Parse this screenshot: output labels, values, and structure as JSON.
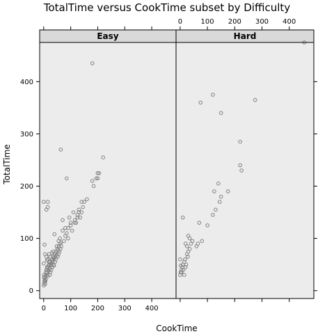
{
  "chart_data": {
    "type": "scatter",
    "title": "TotalTime versus CookTime subset by Difficulty",
    "xlabel": "CookTime",
    "ylabel": "TotalTime",
    "xlim": [
      -15,
      490
    ],
    "ylim": [
      -15,
      475
    ],
    "x_ticks": [
      0,
      100,
      200,
      300,
      400
    ],
    "y_ticks": [
      0,
      100,
      200,
      300,
      400
    ],
    "grid": false,
    "colors": {
      "panel_bg": "#ececec",
      "strip_bg": "#d9d9d9",
      "point_stroke": "#808080"
    },
    "panels": [
      {
        "name": "Easy",
        "points": [
          [
            0,
            10
          ],
          [
            2,
            15
          ],
          [
            3,
            20
          ],
          [
            4,
            25
          ],
          [
            5,
            12
          ],
          [
            6,
            18
          ],
          [
            8,
            22
          ],
          [
            10,
            30
          ],
          [
            12,
            35
          ],
          [
            14,
            40
          ],
          [
            15,
            28
          ],
          [
            16,
            45
          ],
          [
            18,
            38
          ],
          [
            20,
            50
          ],
          [
            22,
            42
          ],
          [
            24,
            55
          ],
          [
            25,
            35
          ],
          [
            26,
            48
          ],
          [
            28,
            52
          ],
          [
            30,
            60
          ],
          [
            32,
            45
          ],
          [
            34,
            58
          ],
          [
            35,
            65
          ],
          [
            36,
            50
          ],
          [
            38,
            62
          ],
          [
            40,
            70
          ],
          [
            42,
            55
          ],
          [
            44,
            72
          ],
          [
            45,
            60
          ],
          [
            46,
            75
          ],
          [
            48,
            68
          ],
          [
            50,
            80
          ],
          [
            52,
            65
          ],
          [
            54,
            78
          ],
          [
            55,
            70
          ],
          [
            56,
            85
          ],
          [
            58,
            75
          ],
          [
            60,
            90
          ],
          [
            62,
            80
          ],
          [
            64,
            92
          ],
          [
            65,
            85
          ],
          [
            10,
            40
          ],
          [
            12,
            45
          ],
          [
            20,
            55
          ],
          [
            25,
            65
          ],
          [
            30,
            72
          ],
          [
            35,
            75
          ],
          [
            15,
            60
          ],
          [
            20,
            70
          ],
          [
            18,
            48
          ],
          [
            8,
            35
          ],
          [
            6,
            28
          ],
          [
            4,
            18
          ],
          [
            2,
            25
          ],
          [
            1,
            30
          ],
          [
            0,
            52
          ],
          [
            3,
            88
          ],
          [
            5,
            70
          ],
          [
            10,
            65
          ],
          [
            12,
            58
          ],
          [
            22,
            30
          ],
          [
            28,
            40
          ],
          [
            32,
            55
          ],
          [
            38,
            48
          ],
          [
            42,
            64
          ],
          [
            48,
            85
          ],
          [
            40,
            108
          ],
          [
            55,
            95
          ],
          [
            60,
            100
          ],
          [
            70,
            115
          ],
          [
            80,
            120
          ],
          [
            85,
            110
          ],
          [
            90,
            100
          ],
          [
            95,
            140
          ],
          [
            100,
            125
          ],
          [
            105,
            115
          ],
          [
            110,
            150
          ],
          [
            115,
            135
          ],
          [
            120,
            130
          ],
          [
            125,
            145
          ],
          [
            130,
            155
          ],
          [
            135,
            140
          ],
          [
            140,
            150
          ],
          [
            145,
            160
          ],
          [
            150,
            170
          ],
          [
            160,
            175
          ],
          [
            70,
            135
          ],
          [
            75,
            95
          ],
          [
            80,
            105
          ],
          [
            90,
            120
          ],
          [
            100,
            130
          ],
          [
            115,
            130
          ],
          [
            125,
            140
          ],
          [
            130,
            150
          ],
          [
            140,
            170
          ],
          [
            0,
            170
          ],
          [
            10,
            155
          ],
          [
            15,
            160
          ],
          [
            15,
            170
          ],
          [
            63,
            270
          ],
          [
            85,
            215
          ],
          [
            180,
            435
          ],
          [
            180,
            210
          ],
          [
            185,
            200
          ],
          [
            195,
            215
          ],
          [
            200,
            215
          ],
          [
            200,
            225
          ],
          [
            205,
            225
          ],
          [
            220,
            255
          ]
        ]
      },
      {
        "name": "Hard",
        "points": [
          [
            0,
            30
          ],
          [
            2,
            35
          ],
          [
            5,
            40
          ],
          [
            8,
            45
          ],
          [
            10,
            50
          ],
          [
            12,
            40
          ],
          [
            15,
            55
          ],
          [
            18,
            60
          ],
          [
            20,
            45
          ],
          [
            22,
            50
          ],
          [
            25,
            70
          ],
          [
            28,
            65
          ],
          [
            30,
            75
          ],
          [
            35,
            80
          ],
          [
            20,
            90
          ],
          [
            25,
            85
          ],
          [
            30,
            105
          ],
          [
            35,
            100
          ],
          [
            40,
            90
          ],
          [
            45,
            95
          ],
          [
            10,
            140
          ],
          [
            60,
            85
          ],
          [
            65,
            90
          ],
          [
            70,
            130
          ],
          [
            80,
            95
          ],
          [
            100,
            125
          ],
          [
            120,
            145
          ],
          [
            125,
            190
          ],
          [
            130,
            155
          ],
          [
            140,
            205
          ],
          [
            145,
            170
          ],
          [
            150,
            180
          ],
          [
            175,
            190
          ],
          [
            75,
            360
          ],
          [
            120,
            375
          ],
          [
            150,
            340
          ],
          [
            220,
            285
          ],
          [
            220,
            240
          ],
          [
            225,
            230
          ],
          [
            275,
            365
          ],
          [
            455,
            475
          ],
          [
            0,
            60
          ],
          [
            5,
            35
          ],
          [
            15,
            30
          ],
          [
            2,
            48
          ]
        ]
      }
    ]
  }
}
